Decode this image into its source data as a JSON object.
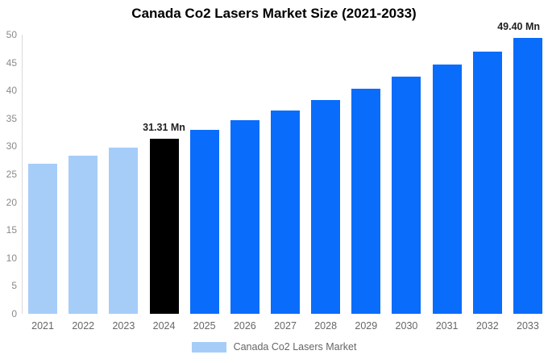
{
  "title": "Canada Co2 Lasers Market Size (2021-2033)",
  "legend": {
    "label": "Canada Co2 Lasers Market",
    "swatch_color": "#a6cdf8"
  },
  "colors": {
    "historical_bar": "#a6cdf8",
    "current_bar": "#000000",
    "forecast_bar": "#0a6cfb",
    "y_axis_text": "#8a8a8a",
    "x_axis_text": "#666666",
    "annotation_text": "#1f1f1f",
    "axis_line": "#d9d9d9",
    "background": "#ffffff"
  },
  "chart_data": {
    "type": "bar",
    "title": "Canada Co2 Lasers Market Size (2021-2033)",
    "unit": "Mn",
    "categories": [
      "2021",
      "2022",
      "2023",
      "2024",
      "2025",
      "2026",
      "2027",
      "2028",
      "2029",
      "2030",
      "2031",
      "2032",
      "2033"
    ],
    "values": [
      26.89,
      28.29,
      29.76,
      31.31,
      32.94,
      34.65,
      36.45,
      38.34,
      40.34,
      42.43,
      44.64,
      46.96,
      49.4
    ],
    "bar_roles": [
      "historical",
      "historical",
      "historical",
      "current",
      "forecast",
      "forecast",
      "forecast",
      "forecast",
      "forecast",
      "forecast",
      "forecast",
      "forecast",
      "forecast"
    ],
    "role_colors": {
      "historical": "#a6cdf8",
      "current": "#000000",
      "forecast": "#0a6cfb"
    },
    "data_labels": [
      {
        "category": "2024",
        "text": "31.31 Mn"
      },
      {
        "category": "2033",
        "text": "49.40 Mn"
      }
    ],
    "ylim": [
      0,
      50
    ],
    "ytick_step": 5,
    "ytick_labels": [
      "0",
      "5",
      "10",
      "15",
      "20",
      "25",
      "30",
      "35",
      "40",
      "45",
      "50"
    ],
    "grid": false,
    "legend_position": "bottom",
    "legend_entries": [
      "Canada Co2 Lasers Market"
    ]
  }
}
